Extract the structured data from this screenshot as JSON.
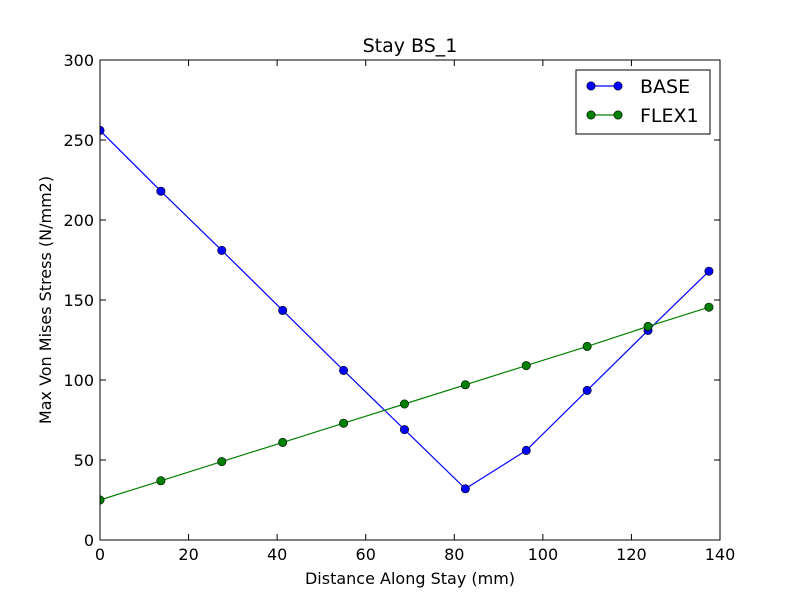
{
  "chart_data": {
    "type": "line",
    "title": "Stay BS_1",
    "xlabel": "Distance Along Stay (mm)",
    "ylabel": "Max Von Mises Stress (N/mm2)",
    "xlim": [
      0,
      140
    ],
    "ylim": [
      0,
      300
    ],
    "xticks": [
      0,
      20,
      40,
      60,
      80,
      100,
      120,
      140
    ],
    "yticks": [
      0,
      50,
      100,
      150,
      200,
      250,
      300
    ],
    "x": [
      0,
      13.75,
      27.5,
      41.25,
      55,
      68.75,
      82.5,
      96.25,
      110,
      123.75,
      137.5
    ],
    "series": [
      {
        "name": "BASE",
        "color": "#0000ff",
        "marker": "circle",
        "values": [
          256,
          218,
          181,
          143.5,
          106,
          69,
          32,
          56,
          93.5,
          131,
          168
        ]
      },
      {
        "name": "FLEX1",
        "color": "#008000",
        "marker": "circle",
        "values": [
          25,
          37,
          49,
          61,
          73,
          85,
          97,
          109,
          121,
          133.5,
          145.5
        ]
      }
    ],
    "legend": "top-right",
    "grid": false
  }
}
